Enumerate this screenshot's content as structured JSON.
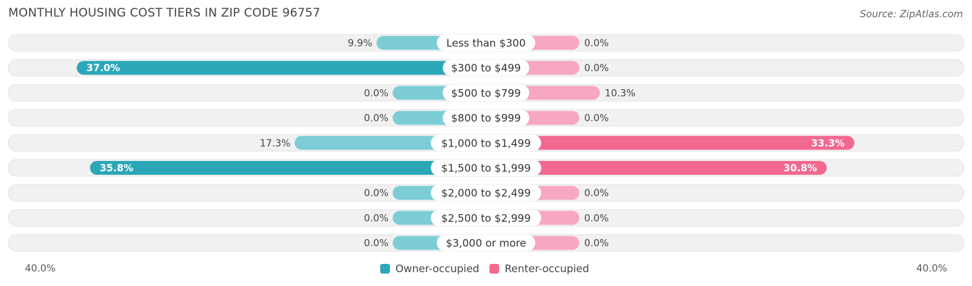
{
  "header": {
    "title": "MONTHLY HOUSING COST TIERS IN ZIP CODE 96757",
    "source": "Source: ZipAtlas.com"
  },
  "colors": {
    "owner": "#2ba7b8",
    "owner_light": "#7ccdd6",
    "renter": "#f2688f",
    "renter_light": "#f7a7c0",
    "row_bg": "#f1f1f1"
  },
  "chart_data": {
    "type": "bar",
    "orientation": "horizontal-diverging",
    "categories": [
      "Less than $300",
      "$300 to $499",
      "$500 to $799",
      "$800 to $999",
      "$1,000 to $1,499",
      "$1,500 to $1,999",
      "$2,000 to $2,499",
      "$2,500 to $2,999",
      "$3,000 or more"
    ],
    "series": [
      {
        "name": "Owner-occupied",
        "values": [
          9.9,
          37.0,
          0.0,
          0.0,
          17.3,
          35.8,
          0.0,
          0.0,
          0.0
        ],
        "labels": [
          "9.9%",
          "37.0%",
          "0.0%",
          "0.0%",
          "17.3%",
          "35.8%",
          "0.0%",
          "0.0%",
          "0.0%"
        ]
      },
      {
        "name": "Renter-occupied",
        "values": [
          0.0,
          0.0,
          10.3,
          0.0,
          33.3,
          30.8,
          0.0,
          0.0,
          0.0
        ],
        "labels": [
          "0.0%",
          "0.0%",
          "10.3%",
          "0.0%",
          "33.3%",
          "30.8%",
          "0.0%",
          "0.0%",
          "0.0%"
        ]
      }
    ],
    "xlim": [
      -40,
      40
    ],
    "axis_left_label": "40.0%",
    "axis_right_label": "40.0%",
    "legend_position": "bottom-center"
  }
}
